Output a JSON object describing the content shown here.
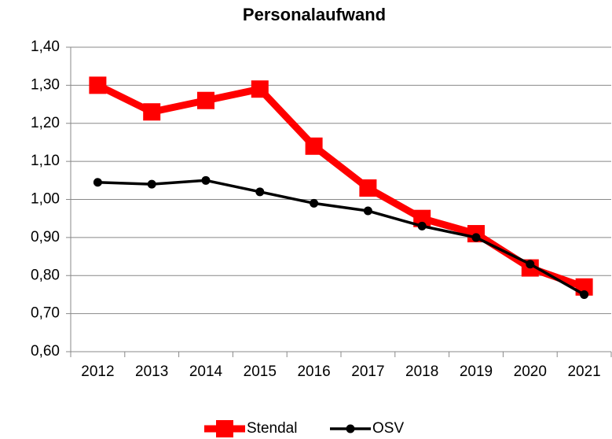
{
  "chart_data": {
    "type": "line",
    "title": "Personalaufwand",
    "categories": [
      "2012",
      "2013",
      "2014",
      "2015",
      "2016",
      "2017",
      "2018",
      "2019",
      "2020",
      "2021"
    ],
    "series": [
      {
        "name": "Stendal",
        "color": "#ff0000",
        "values": [
          1.3,
          1.23,
          1.26,
          1.29,
          1.14,
          1.03,
          0.95,
          0.91,
          0.82,
          0.77
        ]
      },
      {
        "name": "OSV",
        "color": "#000000",
        "values": [
          1.045,
          1.04,
          1.05,
          1.02,
          0.99,
          0.97,
          0.93,
          0.9,
          0.83,
          0.75
        ]
      }
    ],
    "ylim": [
      0.6,
      1.4
    ],
    "yticks": [
      {
        "value": 0.6,
        "label": "0,60"
      },
      {
        "value": 0.7,
        "label": "0,70"
      },
      {
        "value": 0.8,
        "label": "0,80"
      },
      {
        "value": 0.9,
        "label": "0,90"
      },
      {
        "value": 1.0,
        "label": "1,00"
      },
      {
        "value": 1.1,
        "label": "1,10"
      },
      {
        "value": 1.2,
        "label": "1,20"
      },
      {
        "value": 1.3,
        "label": "1,30"
      },
      {
        "value": 1.4,
        "label": "1,40"
      }
    ],
    "grid": true,
    "legend": "bottom"
  }
}
